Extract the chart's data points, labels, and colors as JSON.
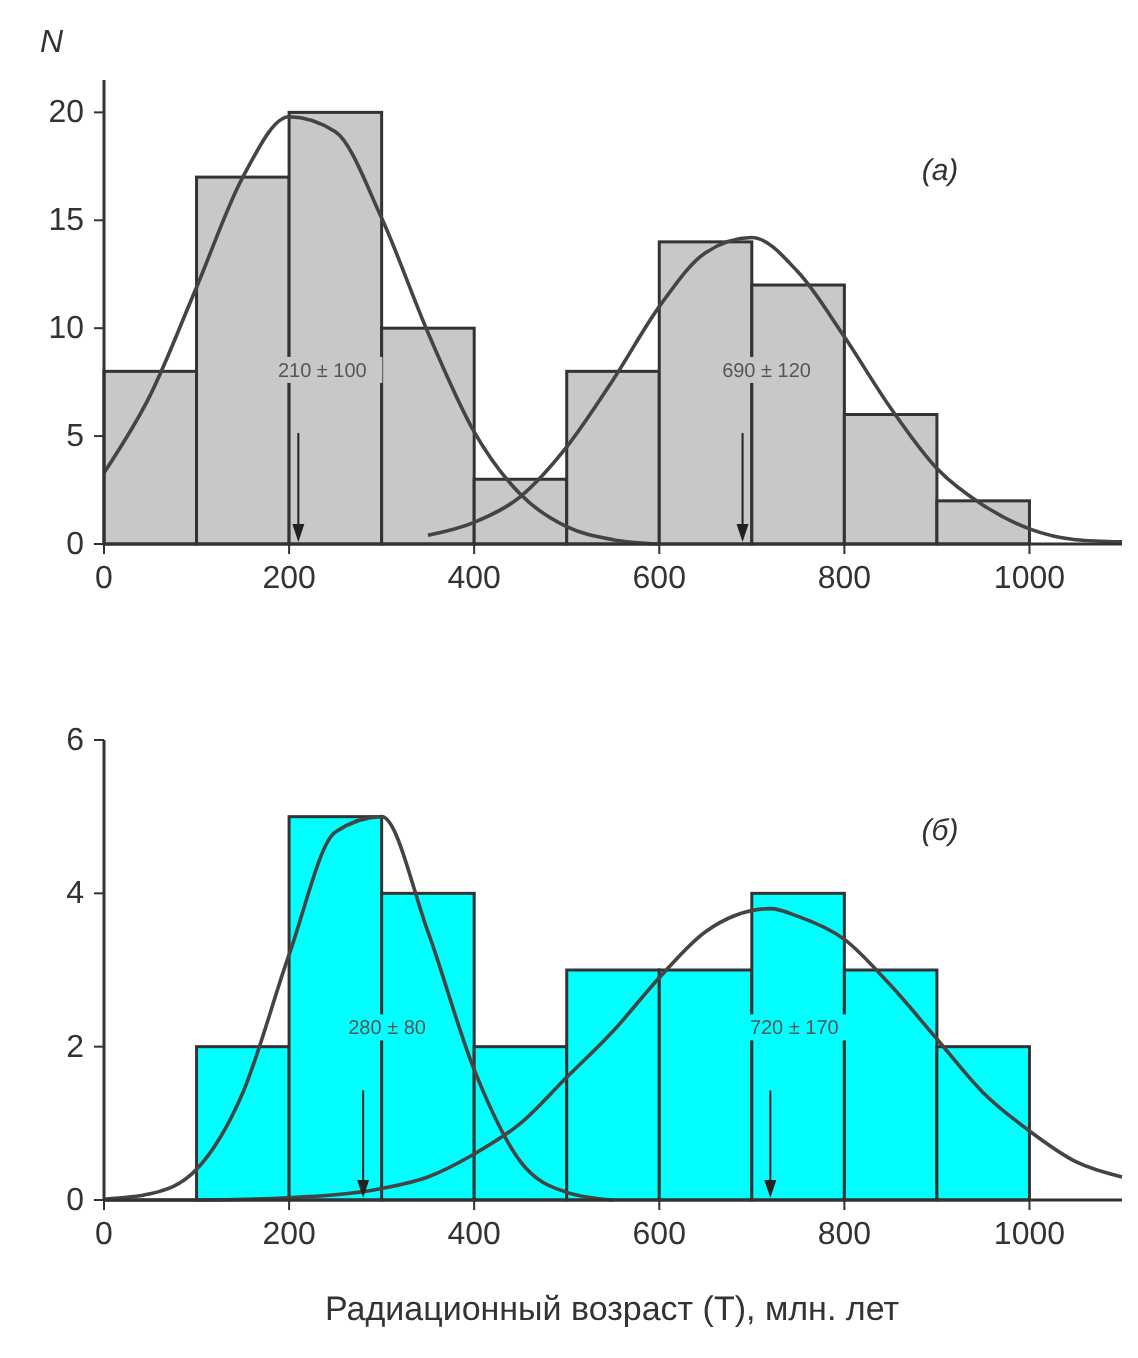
{
  "chart_data": [
    {
      "type": "histogram",
      "ylabel": "N",
      "bins": [
        0,
        100,
        200,
        300,
        400,
        500,
        600,
        700,
        800,
        900,
        1000
      ],
      "values": [
        8,
        17,
        20,
        10,
        3,
        8,
        14,
        12,
        6,
        2
      ],
      "color": "#c8c8c8",
      "xlim": [
        0,
        1100
      ],
      "xticks": [
        0,
        200,
        400,
        600,
        800,
        1000
      ],
      "ylim": [
        0,
        21.5
      ],
      "yticks": [
        0,
        5,
        10,
        15,
        20
      ],
      "series": [
        {
          "type": "line",
          "color": "#444444",
          "x": [
            0,
            50,
            100,
            150,
            200,
            250,
            300,
            350,
            400,
            450,
            500,
            550,
            600
          ],
          "values": [
            3.3,
            6.9,
            11.9,
            17.0,
            19.8,
            19.1,
            15.1,
            9.8,
            5.2,
            2.3,
            0.8,
            0.2,
            0
          ]
        },
        {
          "type": "line",
          "color": "#444444",
          "x": [
            350,
            400,
            450,
            500,
            550,
            600,
            650,
            700,
            750,
            800,
            850,
            900,
            950,
            1000,
            1050,
            1100
          ],
          "values": [
            0.4,
            1.0,
            2.2,
            4.5,
            7.6,
            11.0,
            13.5,
            14.2,
            12.6,
            9.6,
            6.3,
            3.5,
            1.8,
            0.7,
            0.2,
            0.1
          ]
        }
      ],
      "ref_lines": [
        {
          "axis": "x",
          "value": 210,
          "label": "210 ± 100",
          "color": "#222222"
        },
        {
          "axis": "x",
          "value": 690,
          "label": "690 ± 120",
          "color": "#222222"
        }
      ],
      "annotations": [
        "(a)"
      ]
    },
    {
      "type": "histogram",
      "xlabel": "Радиационный возраст (T), млн. лет",
      "bins": [
        100,
        200,
        300,
        400,
        500,
        600,
        700,
        800,
        900,
        1000
      ],
      "values": [
        2,
        5,
        4,
        2,
        3,
        3,
        4,
        3,
        2
      ],
      "color": "#00ffff",
      "xlim": [
        0,
        1100
      ],
      "xticks": [
        0,
        200,
        400,
        600,
        800,
        1000
      ],
      "ylim": [
        0,
        6
      ],
      "yticks": [
        0,
        2,
        4,
        6
      ],
      "series": [
        {
          "type": "line",
          "color": "#444444",
          "x": [
            0,
            50,
            100,
            150,
            200,
            250,
            300,
            350,
            400,
            450,
            500,
            550
          ],
          "values": [
            0.01,
            0.08,
            0.4,
            1.4,
            3.2,
            4.8,
            5.0,
            3.5,
            1.7,
            0.5,
            0.1,
            0
          ]
        },
        {
          "type": "line",
          "color": "#444444",
          "x": [
            0,
            100,
            200,
            300,
            350,
            400,
            450,
            500,
            550,
            600,
            650,
            720,
            750,
            800,
            850,
            900,
            950,
            1000,
            1050,
            1100
          ],
          "values": [
            0,
            0,
            0.03,
            0.15,
            0.3,
            0.6,
            1.0,
            1.6,
            2.2,
            2.9,
            3.5,
            3.8,
            3.7,
            3.4,
            2.8,
            2.1,
            1.4,
            0.9,
            0.5,
            0.3
          ]
        }
      ],
      "ref_lines": [
        {
          "axis": "x",
          "value": 280,
          "label": "280 ± 80",
          "color": "#222222"
        },
        {
          "axis": "x",
          "value": 720,
          "label": "720 ± 170",
          "color": "#222222"
        }
      ],
      "annotations": [
        "(б)"
      ]
    }
  ]
}
